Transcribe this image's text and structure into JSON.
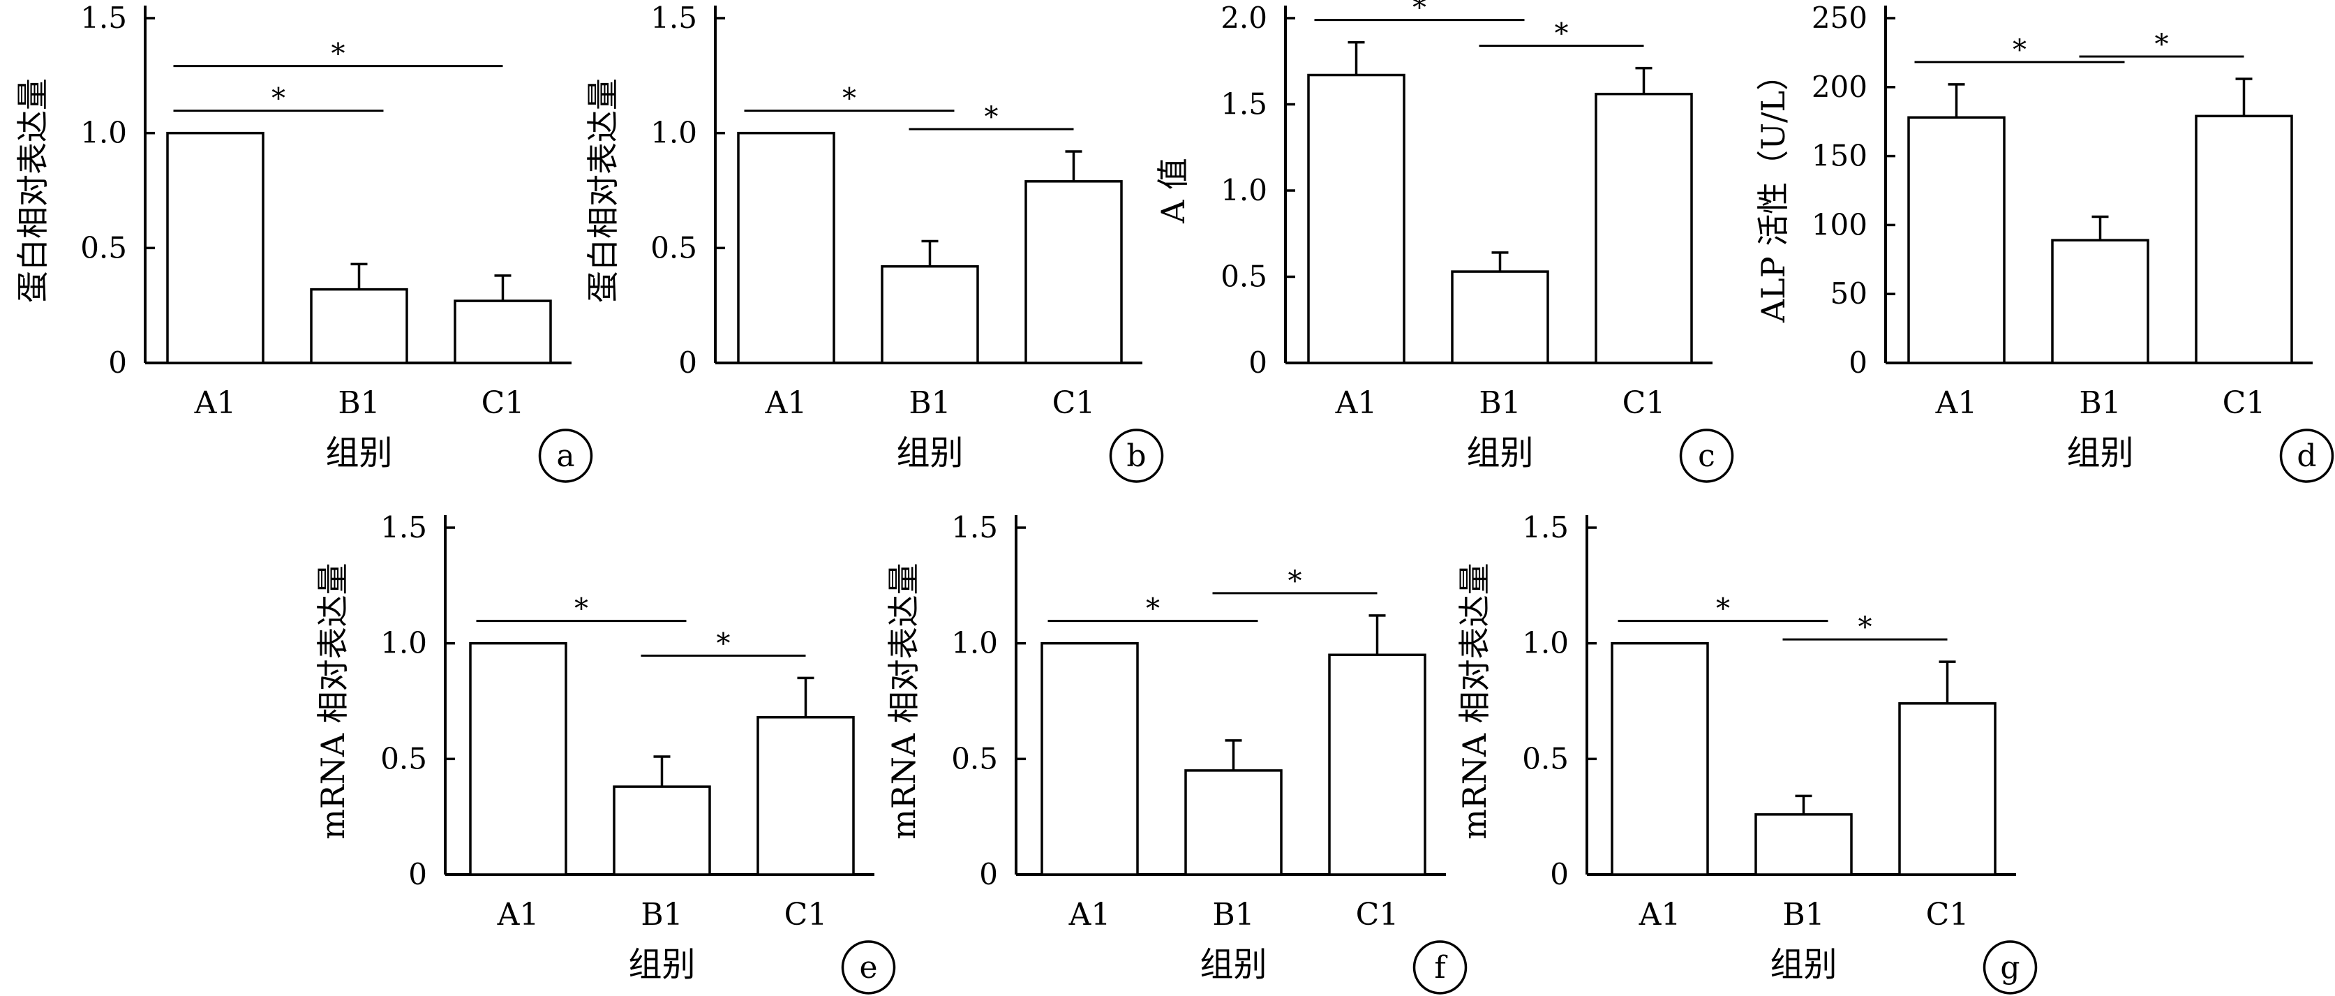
{
  "chart_data": [
    {
      "type": "bar",
      "panel_label": "a",
      "categories": [
        "A1",
        "B1",
        "C1"
      ],
      "values": [
        1.0,
        0.32,
        0.27
      ],
      "errors": [
        0,
        0.11,
        0.11
      ],
      "ylim": [
        0,
        1.5
      ],
      "yticks": [
        "0",
        "0.5",
        "1.0",
        "1.5"
      ],
      "ylabel": "蛋白相对表达量",
      "xlabel": "组别",
      "significance": [
        {
          "from": 0,
          "to": 1,
          "label": "*"
        },
        {
          "from": 0,
          "to": 2,
          "label": "*"
        }
      ]
    },
    {
      "type": "bar",
      "panel_label": "b",
      "categories": [
        "A1",
        "B1",
        "C1"
      ],
      "values": [
        1.0,
        0.42,
        0.79
      ],
      "errors": [
        0,
        0.11,
        0.13
      ],
      "ylim": [
        0,
        1.5
      ],
      "yticks": [
        "0",
        "0.5",
        "1.0",
        "1.5"
      ],
      "ylabel": "蛋白相对表达量",
      "xlabel": "组别",
      "significance": [
        {
          "from": 0,
          "to": 1,
          "label": "*"
        },
        {
          "from": 1,
          "to": 2,
          "label": "*"
        }
      ]
    },
    {
      "type": "bar",
      "panel_label": "c",
      "categories": [
        "A1",
        "B1",
        "C1"
      ],
      "values": [
        1.67,
        0.53,
        1.56
      ],
      "errors": [
        0.19,
        0.11,
        0.15
      ],
      "ylim": [
        0,
        2.0
      ],
      "yticks": [
        "0",
        "0.5",
        "1.0",
        "1.5",
        "2.0"
      ],
      "ylabel": "A 值",
      "xlabel": "组别",
      "significance": [
        {
          "from": 0,
          "to": 1,
          "label": "*"
        },
        {
          "from": 1,
          "to": 2,
          "label": "*"
        }
      ]
    },
    {
      "type": "bar",
      "panel_label": "d",
      "categories": [
        "A1",
        "B1",
        "C1"
      ],
      "values": [
        178,
        89,
        179
      ],
      "errors": [
        24,
        17,
        27
      ],
      "ylim": [
        0,
        250
      ],
      "yticks": [
        "0",
        "50",
        "100",
        "150",
        "200",
        "250"
      ],
      "ylabel": "ALP 活性（U/L）",
      "xlabel": "组别",
      "significance": [
        {
          "from": 0,
          "to": 1,
          "label": "*"
        },
        {
          "from": 1,
          "to": 2,
          "label": "*"
        }
      ]
    },
    {
      "type": "bar",
      "panel_label": "e",
      "categories": [
        "A1",
        "B1",
        "C1"
      ],
      "values": [
        1.0,
        0.38,
        0.68
      ],
      "errors": [
        0,
        0.13,
        0.17
      ],
      "ylim": [
        0,
        1.5
      ],
      "yticks": [
        "0",
        "0.5",
        "1.0",
        "1.5"
      ],
      "ylabel": "mRNA 相对表达量",
      "xlabel": "组别",
      "significance": [
        {
          "from": 0,
          "to": 1,
          "label": "*"
        },
        {
          "from": 1,
          "to": 2,
          "label": "*"
        }
      ]
    },
    {
      "type": "bar",
      "panel_label": "f",
      "categories": [
        "A1",
        "B1",
        "C1"
      ],
      "values": [
        1.0,
        0.45,
        0.95
      ],
      "errors": [
        0,
        0.13,
        0.17
      ],
      "ylim": [
        0,
        1.5
      ],
      "yticks": [
        "0",
        "0.5",
        "1.0",
        "1.5"
      ],
      "ylabel": "mRNA 相对表达量",
      "xlabel": "组别",
      "significance": [
        {
          "from": 0,
          "to": 1,
          "label": "*"
        },
        {
          "from": 1,
          "to": 2,
          "label": "*"
        }
      ]
    },
    {
      "type": "bar",
      "panel_label": "g",
      "categories": [
        "A1",
        "B1",
        "C1"
      ],
      "values": [
        1.0,
        0.26,
        0.74
      ],
      "errors": [
        0,
        0.08,
        0.18
      ],
      "ylim": [
        0,
        1.5
      ],
      "yticks": [
        "0",
        "0.5",
        "1.0",
        "1.5"
      ],
      "ylabel": "mRNA 相对表达量",
      "xlabel": "组别",
      "significance": [
        {
          "from": 0,
          "to": 1,
          "label": "*"
        },
        {
          "from": 1,
          "to": 2,
          "label": "*"
        }
      ]
    }
  ]
}
